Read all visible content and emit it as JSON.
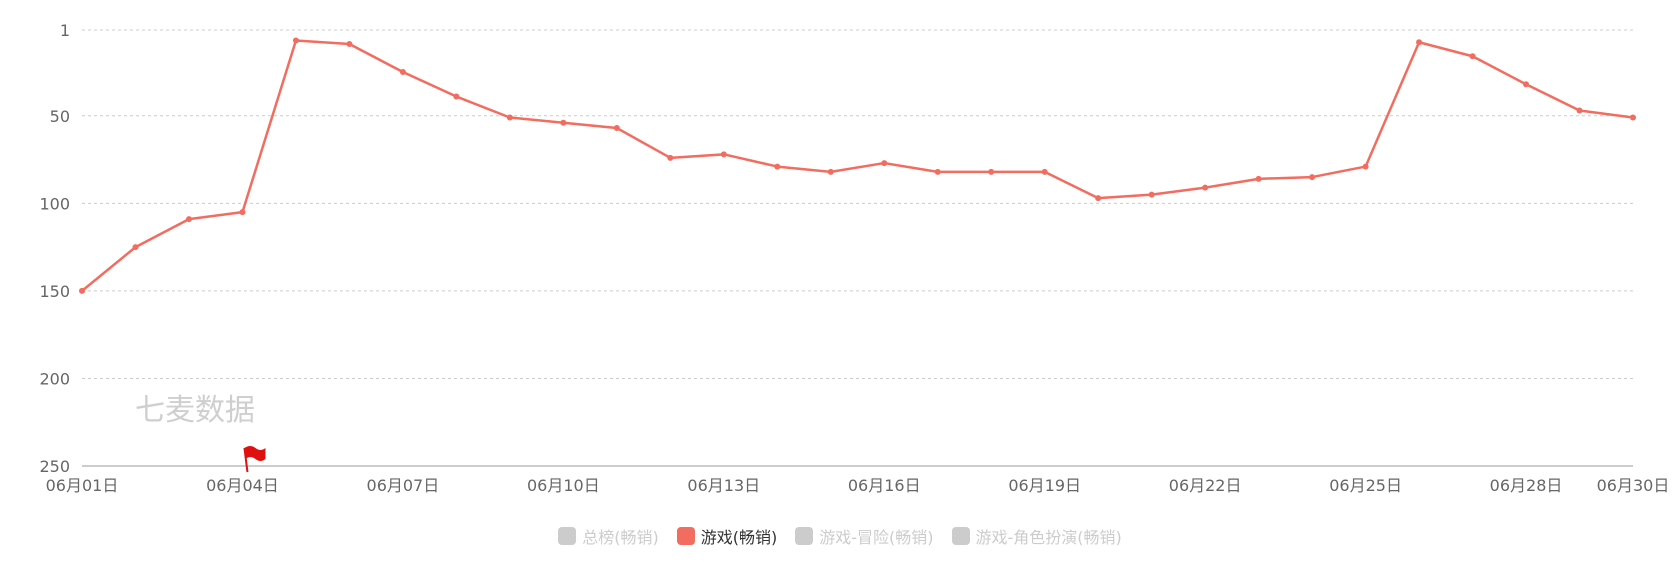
{
  "watermark": "七麦数据",
  "colors": {
    "series": "#f36c60",
    "grid": "#cccccc",
    "axis": "#999999",
    "tick_text": "#666666",
    "legend_inactive": "#cccccc",
    "legend_active_text": "#333333",
    "flag": "#e01010"
  },
  "legend": [
    {
      "label": "总榜(畅销)",
      "active": false
    },
    {
      "label": "游戏(畅销)",
      "active": true
    },
    {
      "label": "游戏-冒险(畅销)",
      "active": false
    },
    {
      "label": "游戏-角色扮演(畅销)",
      "active": false
    }
  ],
  "flag_marker": {
    "date": "06月04日",
    "icon": "red-flag-icon"
  },
  "chart_data": {
    "type": "line",
    "title": "",
    "xlabel": "",
    "ylabel": "",
    "y_inverted": true,
    "ylim": [
      1,
      250
    ],
    "y_ticks": [
      1,
      50,
      100,
      150,
      200,
      250
    ],
    "x_tick_labels": [
      "06月01日",
      "06月04日",
      "06月07日",
      "06月10日",
      "06月13日",
      "06月16日",
      "06月19日",
      "06月22日",
      "06月25日",
      "06月28日",
      "06月30日"
    ],
    "x": [
      "06月01日",
      "06月02日",
      "06月03日",
      "06月04日",
      "06月05日",
      "06月06日",
      "06月07日",
      "06月08日",
      "06月09日",
      "06月10日",
      "06月11日",
      "06月12日",
      "06月13日",
      "06月14日",
      "06月15日",
      "06月16日",
      "06月17日",
      "06月18日",
      "06月19日",
      "06月20日",
      "06月21日",
      "06月22日",
      "06月23日",
      "06月24日",
      "06月25日",
      "06月26日",
      "06月27日",
      "06月28日",
      "06月29日",
      "06月30日"
    ],
    "grid": true,
    "legend_position": "bottom",
    "series": [
      {
        "name": "游戏(畅销)",
        "values": [
          150,
          125,
          109,
          105,
          7,
          9,
          25,
          39,
          51,
          54,
          57,
          74,
          72,
          79,
          82,
          77,
          82,
          82,
          82,
          97,
          95,
          91,
          86,
          85,
          79,
          8,
          16,
          32,
          47,
          51
        ]
      }
    ]
  }
}
